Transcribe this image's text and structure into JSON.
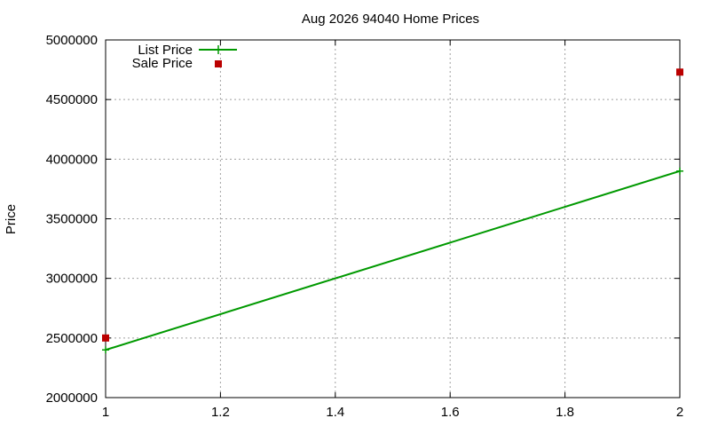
{
  "chart_data": {
    "type": "line",
    "title": "Aug 2026 94040 Home Prices",
    "xlabel": "",
    "ylabel": "Price",
    "xlim": [
      1,
      2
    ],
    "ylim": [
      2000000,
      5000000
    ],
    "x_ticks": [
      "1",
      "1.2",
      "1.4",
      "1.6",
      "1.8",
      "2"
    ],
    "y_ticks": [
      "2000000",
      "2500000",
      "3000000",
      "3500000",
      "4000000",
      "4500000",
      "5000000"
    ],
    "grid": true,
    "legend_position": "top-left",
    "series": [
      {
        "name": "List Price",
        "style": "linespoints",
        "marker": "plus",
        "color": "#009900",
        "x": [
          1,
          2
        ],
        "y": [
          2400000,
          3900000
        ]
      },
      {
        "name": "Sale Price",
        "style": "points",
        "marker": "square",
        "color": "#bb0000",
        "x": [
          1,
          2
        ],
        "y": [
          2500000,
          4730000
        ]
      }
    ]
  }
}
